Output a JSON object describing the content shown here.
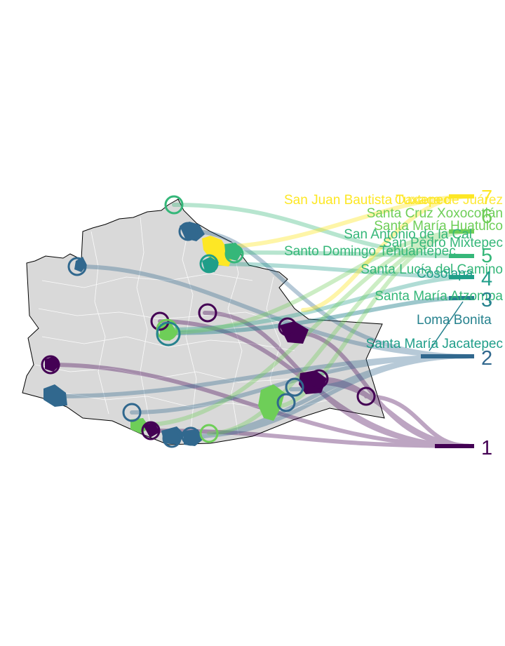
{
  "colors": {
    "rank_1": "#440154",
    "rank_2": "#31688e",
    "rank_3": "#26828e",
    "rank_4": "#1f9e89",
    "rank_5": "#35b779",
    "rank_6": "#6ece58",
    "rank_7": "#fde725",
    "land": "#d9d9d9",
    "borders": "#ffffff",
    "outline": "#000000"
  },
  "rank_labels": [
    "1",
    "2",
    "3",
    "4",
    "5",
    "6",
    "7"
  ],
  "municipality_labels": [
    "San Juan Bautista Tuxtepec",
    "Oaxaca de Juárez",
    "Santa Cruz Xoxocotlán",
    "Santa María Huatulco",
    "San Antonio de la Cal",
    "San Pedro Mixtepec",
    "Santo Domingo Tehuantepec",
    "Santa Lucía del Camino",
    "Cosolapa",
    "Santa María Atzompa",
    "Loma Bonita",
    "Santa María Jacatepec"
  ]
}
